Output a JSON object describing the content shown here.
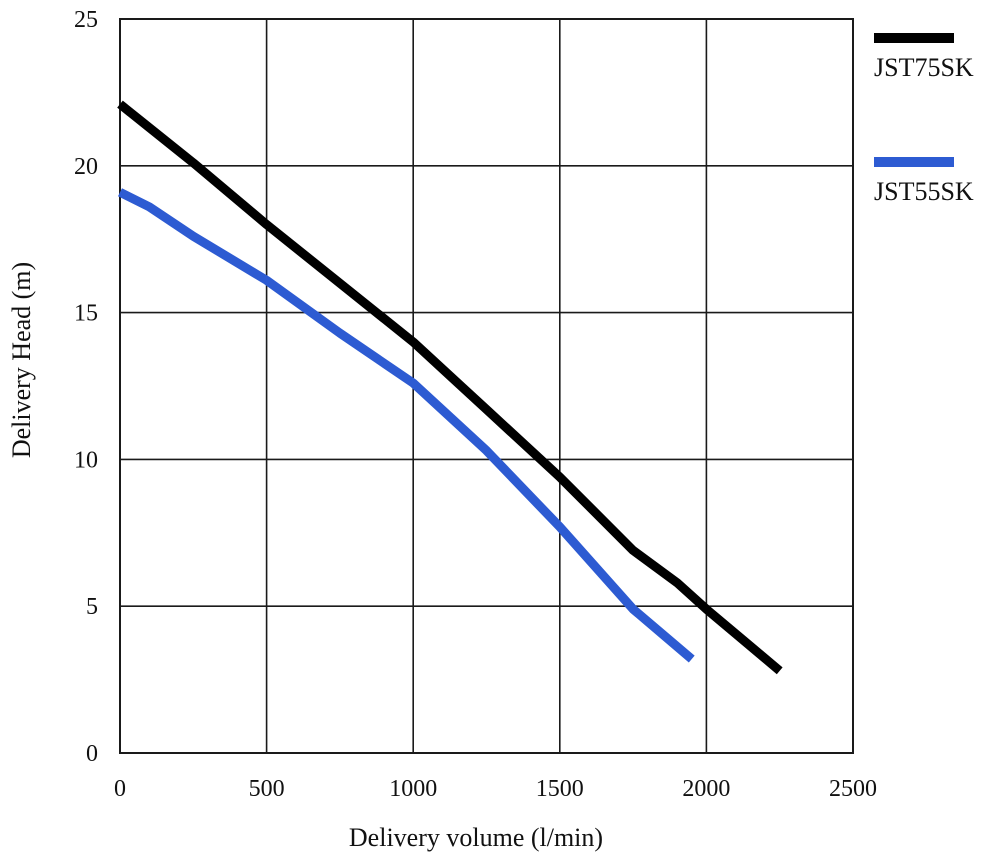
{
  "chart_data": {
    "type": "line",
    "title": "",
    "xlabel": "Delivery volume (l/min)",
    "ylabel": "Delivery Head (m)",
    "xlim": [
      0,
      2500
    ],
    "ylim": [
      0,
      25
    ],
    "x_ticks": [
      0,
      500,
      1000,
      1500,
      2000,
      2500
    ],
    "y_ticks": [
      0,
      5,
      10,
      15,
      20,
      25
    ],
    "grid": true,
    "legend_position": "right",
    "series": [
      {
        "name": "JST75SK",
        "color": "#000000",
        "x": [
          0,
          250,
          500,
          750,
          1000,
          1250,
          1500,
          1750,
          1900,
          2000,
          2250
        ],
        "y": [
          22.1,
          20.1,
          18.0,
          16.0,
          14.0,
          11.7,
          9.4,
          6.9,
          5.8,
          4.9,
          2.8
        ]
      },
      {
        "name": "JST55SK",
        "color": "#2d5bd2",
        "x": [
          0,
          100,
          250,
          500,
          750,
          1000,
          1250,
          1500,
          1750,
          1950
        ],
        "y": [
          19.1,
          18.6,
          17.6,
          16.1,
          14.3,
          12.6,
          10.3,
          7.7,
          4.9,
          3.2
        ]
      }
    ]
  }
}
